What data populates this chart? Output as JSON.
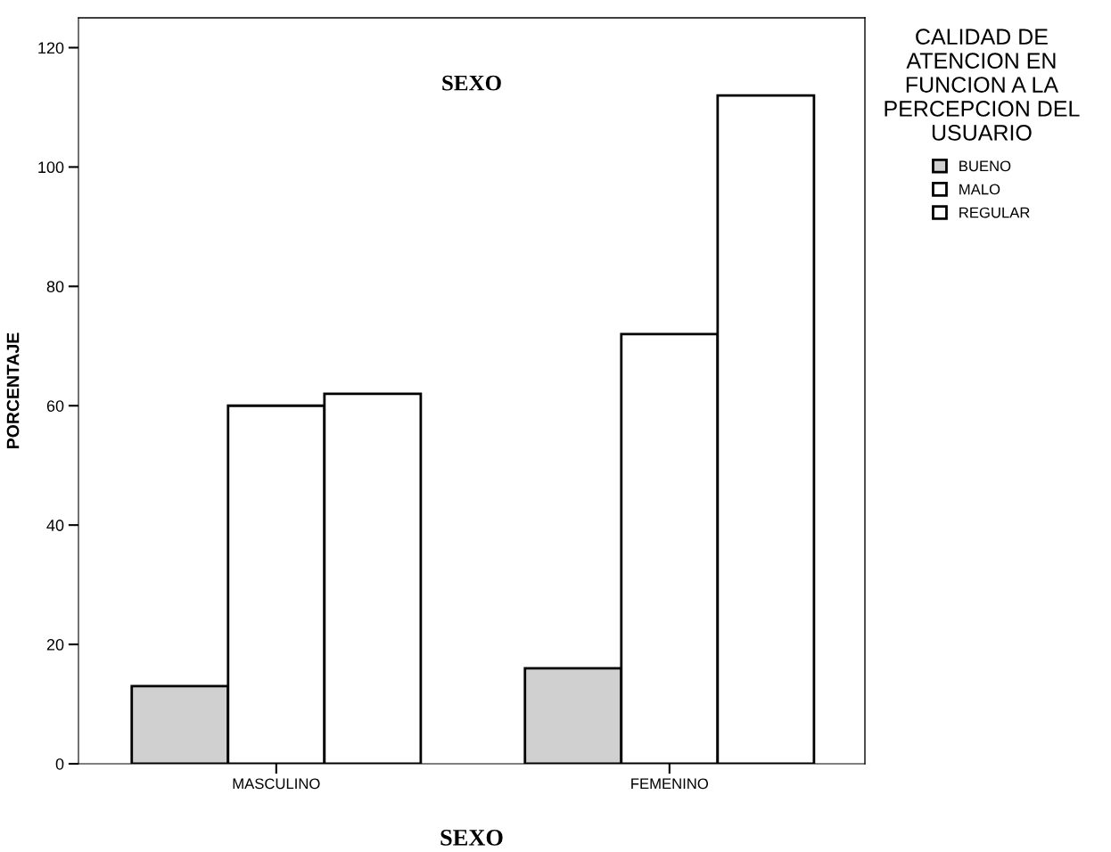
{
  "chart_data": {
    "type": "bar",
    "title": "SEXO",
    "xlabel": "SEXO",
    "ylabel": "PORCENTAJE",
    "legend_title": "CALIDAD DE\nATENCION EN\nFUNCION A LA\nPERCEPCION DEL\nUSUARIO",
    "categories": [
      "MASCULINO",
      "FEMENINO"
    ],
    "series": [
      {
        "name": "BUENO",
        "color": "#d0d0d0",
        "values": [
          13,
          16
        ]
      },
      {
        "name": "MALO",
        "color": "#ffffff",
        "values": [
          60,
          72
        ]
      },
      {
        "name": "REGULAR",
        "color": "#ffffff",
        "values": [
          62,
          112
        ]
      }
    ],
    "ylim": [
      0,
      125
    ],
    "yticks": [
      0,
      20,
      40,
      60,
      80,
      100,
      120
    ],
    "grid": false,
    "legend": "right"
  }
}
